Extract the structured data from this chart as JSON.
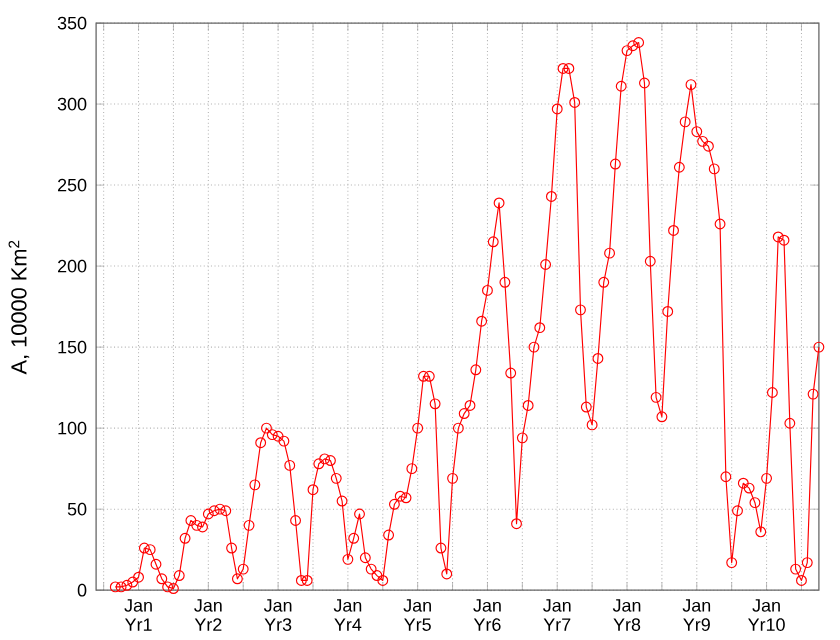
{
  "chart_data": {
    "type": "line",
    "ylabel": "A, 10000 Km$^{2}$",
    "categories": [
      null,
      null,
      null,
      null,
      "Jan Yr1",
      null,
      null,
      null,
      null,
      null,
      null,
      null,
      null,
      null,
      null,
      null,
      "Jan Yr2",
      null,
      null,
      null,
      null,
      null,
      null,
      null,
      null,
      null,
      null,
      null,
      "Jan Yr3",
      null,
      null,
      null,
      null,
      null,
      null,
      null,
      null,
      null,
      null,
      null,
      "Jan Yr4",
      null,
      null,
      null,
      null,
      null,
      null,
      null,
      null,
      null,
      null,
      null,
      "Jan Yr5",
      null,
      null,
      null,
      null,
      null,
      null,
      null,
      null,
      null,
      null,
      null,
      "Jan Yr6",
      null,
      null,
      null,
      null,
      null,
      null,
      null,
      null,
      null,
      null,
      null,
      "Jan Yr7",
      null,
      null,
      null,
      null,
      null,
      null,
      null,
      null,
      null,
      null,
      null,
      "Jan Yr8",
      null,
      null,
      null,
      null,
      null,
      null,
      null,
      null,
      null,
      null,
      null,
      "Jan Yr9",
      null,
      null,
      null,
      null,
      null,
      null,
      null,
      null,
      null,
      null,
      null,
      "Jan Yr10",
      null,
      null,
      null,
      null,
      null,
      null,
      null,
      null,
      null
    ],
    "series": [
      {
        "color": "#ff0000",
        "values": [
          2,
          2,
          3,
          5,
          8,
          26,
          25,
          16,
          7,
          2,
          1,
          9,
          32,
          43,
          40,
          39,
          47,
          49,
          50,
          49,
          26,
          7,
          13,
          40,
          65,
          91,
          100,
          96,
          95,
          92,
          77,
          43,
          6,
          6,
          62,
          78,
          81,
          80,
          69,
          55,
          19,
          32,
          47,
          20,
          13,
          9,
          6,
          34,
          53,
          58,
          57,
          75,
          100,
          132,
          132,
          115,
          26,
          10,
          69,
          100,
          109,
          114,
          136,
          166,
          185,
          215,
          239,
          190,
          134,
          41,
          94,
          114,
          150,
          162,
          201,
          243,
          297,
          322,
          322,
          301,
          173,
          113,
          102,
          143,
          190,
          208,
          263,
          311,
          333,
          336,
          338,
          313,
          203,
          119,
          107,
          172,
          222,
          261,
          289,
          312,
          283,
          277,
          274,
          260,
          226,
          70,
          17,
          49,
          66,
          63,
          54,
          36,
          69,
          122,
          218,
          216,
          103,
          13,
          6,
          17,
          121,
          150
        ]
      }
    ],
    "ylim": [
      0,
      350
    ],
    "yticks": [
      0,
      50,
      100,
      150,
      200,
      250,
      300,
      350
    ],
    "grid": true,
    "marker": "circle",
    "line_style": "solid"
  }
}
